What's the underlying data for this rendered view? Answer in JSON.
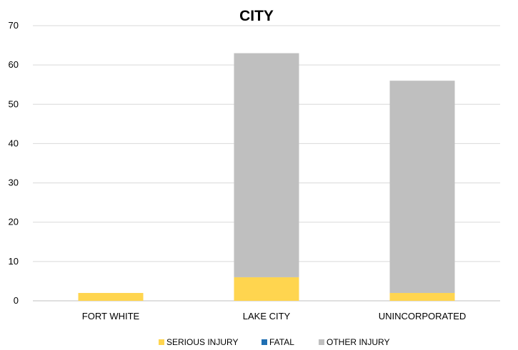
{
  "chart_data": {
    "type": "bar",
    "stacked": true,
    "title": "CITY",
    "categories": [
      "FORT WHITE",
      "LAKE CITY",
      "UNINCORPORATED"
    ],
    "series": [
      {
        "name": "SERIOUS INJURY",
        "values": [
          2,
          6,
          2
        ],
        "color": "#FFD54F"
      },
      {
        "name": "FATAL",
        "values": [
          0,
          0,
          0
        ],
        "color": "#1F6FB2"
      },
      {
        "name": "OTHER INJURY",
        "values": [
          0,
          57,
          54
        ],
        "color": "#BFBFBF"
      }
    ],
    "ylim": [
      0,
      70
    ],
    "yticks": [
      0,
      10,
      20,
      30,
      40,
      50,
      60,
      70
    ],
    "grid": true,
    "legend_position": "bottom"
  }
}
